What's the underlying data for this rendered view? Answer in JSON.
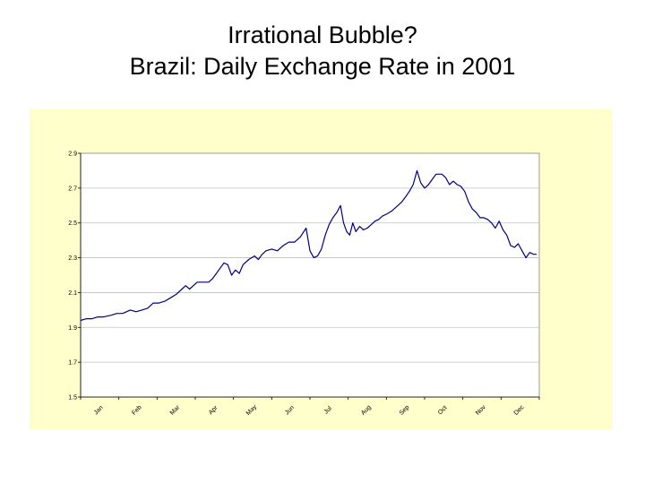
{
  "slide": {
    "title_line1": "Irrational Bubble?",
    "title_line2": "Brazil: Daily Exchange Rate in 2001"
  },
  "colors": {
    "background": "#ffffff",
    "chart_area_bg": "#ffffcc",
    "plot_bg": "#ffffff",
    "line": "#000080",
    "grid": "#c0c0c0"
  },
  "chart_data": {
    "type": "line",
    "title": "",
    "xlabel": "",
    "ylabel": "",
    "ylim": [
      1.5,
      2.9
    ],
    "yticks": [
      "1.5",
      "1.7",
      "1.9",
      "2.1",
      "2.3",
      "2.5",
      "2.7",
      "2.9"
    ],
    "xticks": [
      "Jan",
      "Feb",
      "Mar",
      "Apr",
      "May",
      "Jun",
      "Jul",
      "Aug",
      "Sep",
      "Oct",
      "Nov",
      "Dec"
    ],
    "grid": true,
    "legend": "none",
    "series": [
      {
        "x_unit": "month of 2001",
        "points": [
          [
            0.0,
            1.94
          ],
          [
            0.15,
            1.95
          ],
          [
            0.3,
            1.95
          ],
          [
            0.45,
            1.96
          ],
          [
            0.6,
            1.96
          ],
          [
            0.8,
            1.97
          ],
          [
            0.95,
            1.98
          ],
          [
            1.1,
            1.98
          ],
          [
            1.3,
            2.0
          ],
          [
            1.45,
            1.99
          ],
          [
            1.6,
            2.0
          ],
          [
            1.75,
            2.01
          ],
          [
            1.9,
            2.04
          ],
          [
            2.05,
            2.04
          ],
          [
            2.2,
            2.05
          ],
          [
            2.35,
            2.07
          ],
          [
            2.5,
            2.09
          ],
          [
            2.65,
            2.12
          ],
          [
            2.75,
            2.14
          ],
          [
            2.85,
            2.12
          ],
          [
            2.95,
            2.14
          ],
          [
            3.05,
            2.16
          ],
          [
            3.2,
            2.16
          ],
          [
            3.35,
            2.16
          ],
          [
            3.45,
            2.18
          ],
          [
            3.55,
            2.21
          ],
          [
            3.65,
            2.24
          ],
          [
            3.75,
            2.27
          ],
          [
            3.85,
            2.26
          ],
          [
            3.95,
            2.2
          ],
          [
            4.05,
            2.23
          ],
          [
            4.15,
            2.21
          ],
          [
            4.25,
            2.26
          ],
          [
            4.4,
            2.29
          ],
          [
            4.55,
            2.31
          ],
          [
            4.65,
            2.29
          ],
          [
            4.75,
            2.32
          ],
          [
            4.85,
            2.34
          ],
          [
            5.0,
            2.35
          ],
          [
            5.15,
            2.34
          ],
          [
            5.3,
            2.37
          ],
          [
            5.45,
            2.39
          ],
          [
            5.6,
            2.39
          ],
          [
            5.75,
            2.42
          ],
          [
            5.9,
            2.47
          ],
          [
            6.0,
            2.34
          ],
          [
            6.1,
            2.3
          ],
          [
            6.2,
            2.31
          ],
          [
            6.3,
            2.35
          ],
          [
            6.4,
            2.43
          ],
          [
            6.5,
            2.49
          ],
          [
            6.6,
            2.53
          ],
          [
            6.7,
            2.56
          ],
          [
            6.8,
            2.6
          ],
          [
            6.88,
            2.5
          ],
          [
            6.96,
            2.45
          ],
          [
            7.04,
            2.43
          ],
          [
            7.12,
            2.5
          ],
          [
            7.2,
            2.45
          ],
          [
            7.3,
            2.48
          ],
          [
            7.4,
            2.46
          ],
          [
            7.5,
            2.47
          ],
          [
            7.6,
            2.49
          ],
          [
            7.7,
            2.51
          ],
          [
            7.8,
            2.52
          ],
          [
            7.9,
            2.54
          ],
          [
            8.0,
            2.55
          ],
          [
            8.15,
            2.57
          ],
          [
            8.3,
            2.6
          ],
          [
            8.4,
            2.62
          ],
          [
            8.5,
            2.65
          ],
          [
            8.6,
            2.68
          ],
          [
            8.7,
            2.72
          ],
          [
            8.8,
            2.8
          ],
          [
            8.9,
            2.73
          ],
          [
            9.0,
            2.7
          ],
          [
            9.1,
            2.72
          ],
          [
            9.2,
            2.75
          ],
          [
            9.3,
            2.78
          ],
          [
            9.45,
            2.78
          ],
          [
            9.55,
            2.76
          ],
          [
            9.65,
            2.72
          ],
          [
            9.75,
            2.74
          ],
          [
            9.85,
            2.72
          ],
          [
            9.95,
            2.71
          ],
          [
            10.05,
            2.68
          ],
          [
            10.15,
            2.62
          ],
          [
            10.25,
            2.58
          ],
          [
            10.35,
            2.56
          ],
          [
            10.45,
            2.53
          ],
          [
            10.55,
            2.53
          ],
          [
            10.65,
            2.52
          ],
          [
            10.75,
            2.5
          ],
          [
            10.85,
            2.47
          ],
          [
            10.95,
            2.51
          ],
          [
            11.05,
            2.46
          ],
          [
            11.15,
            2.43
          ],
          [
            11.25,
            2.37
          ],
          [
            11.35,
            2.36
          ],
          [
            11.45,
            2.38
          ],
          [
            11.55,
            2.34
          ],
          [
            11.65,
            2.3
          ],
          [
            11.75,
            2.33
          ],
          [
            11.85,
            2.32
          ],
          [
            11.93,
            2.32
          ]
        ]
      }
    ]
  }
}
